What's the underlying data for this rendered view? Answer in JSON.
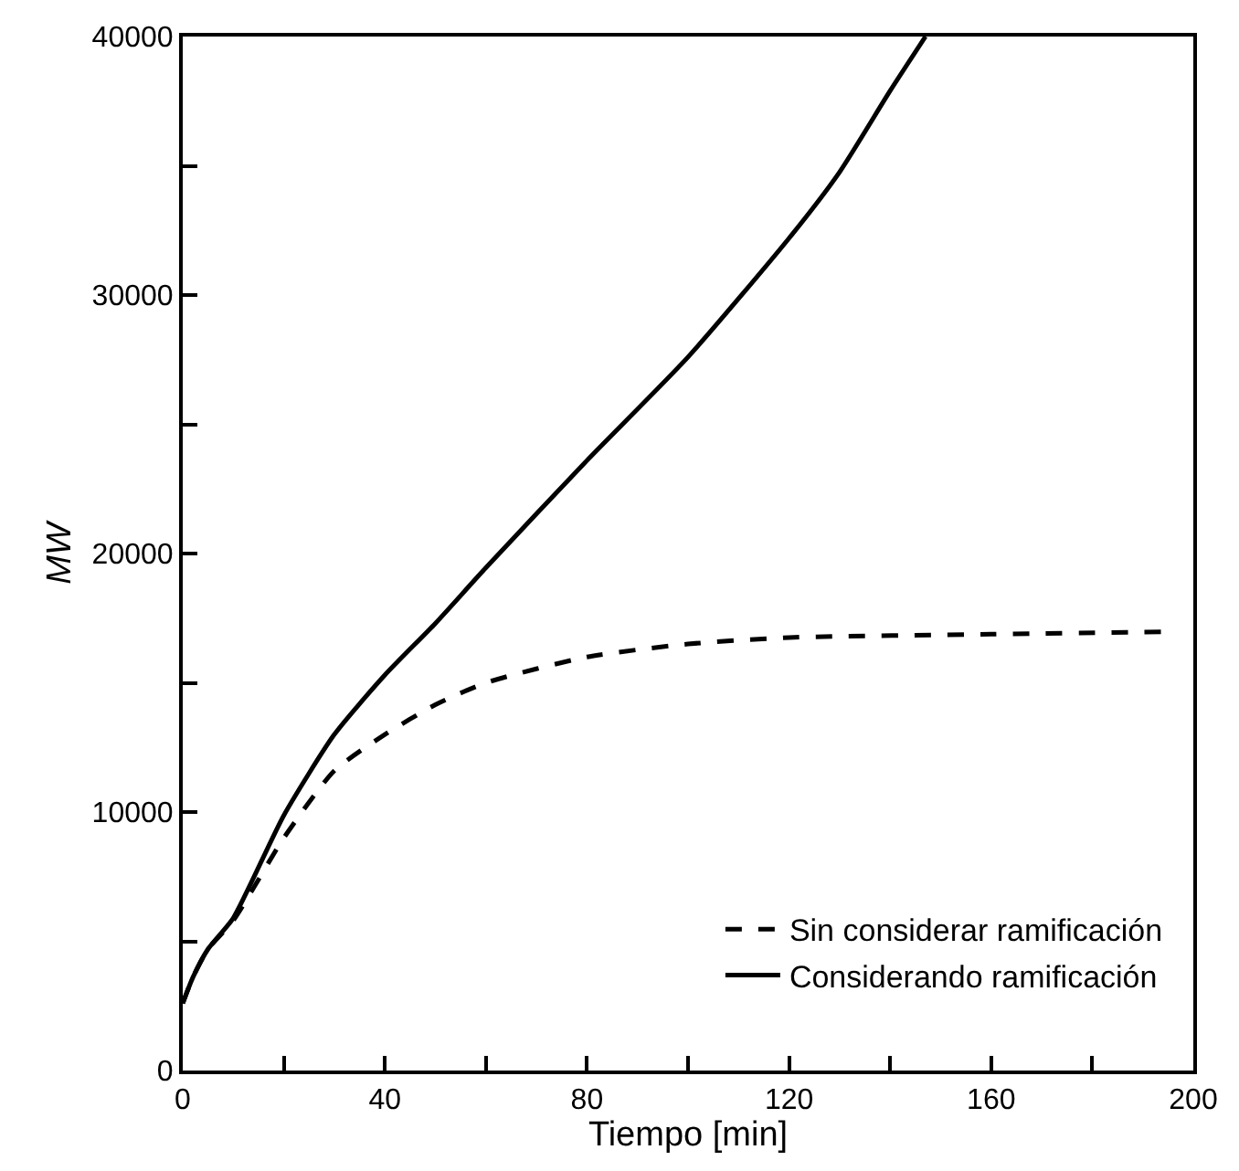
{
  "chart_data": {
    "type": "line",
    "xlabel": "Tiempo [min]",
    "ylabel": "MW",
    "xlim": [
      0,
      200
    ],
    "ylim": [
      0,
      40000
    ],
    "xticks": [
      0,
      {
        "value": 20,
        "label": null
      },
      40,
      {
        "value": 60,
        "label": null
      },
      80,
      {
        "value": 100,
        "label": null
      },
      120,
      {
        "value": 140,
        "label": null
      },
      160,
      {
        "value": 180,
        "label": null
      },
      200
    ],
    "yticks": [
      0,
      {
        "value": 5000,
        "label": null
      },
      10000,
      {
        "value": 15000,
        "label": null
      },
      20000,
      {
        "value": 25000,
        "label": null
      },
      30000,
      {
        "value": 35000,
        "label": null
      },
      40000
    ],
    "legend": "bottom right",
    "marker": "none",
    "series": [
      {
        "name": "Sin considerar ramificación",
        "color": "#000000",
        "line_style": "dashed",
        "x": [
          0,
          2,
          5,
          10,
          20,
          30,
          40,
          50,
          60,
          80,
          100,
          120,
          160,
          195
        ],
        "values": [
          2600,
          3600,
          4700,
          5800,
          9000,
          11600,
          13000,
          14150,
          15000,
          16000,
          16500,
          16750,
          16880,
          16970
        ]
      },
      {
        "name": "Considerando ramificación",
        "color": "#000000",
        "line_style": "solid",
        "x": [
          0,
          2,
          5,
          10,
          20,
          30,
          40,
          50,
          60,
          80,
          100,
          120,
          130,
          140,
          147
        ],
        "values": [
          2600,
          3600,
          4700,
          5900,
          9870,
          13000,
          15300,
          17300,
          19450,
          23600,
          27600,
          32200,
          34760,
          37900,
          40000
        ]
      }
    ]
  }
}
